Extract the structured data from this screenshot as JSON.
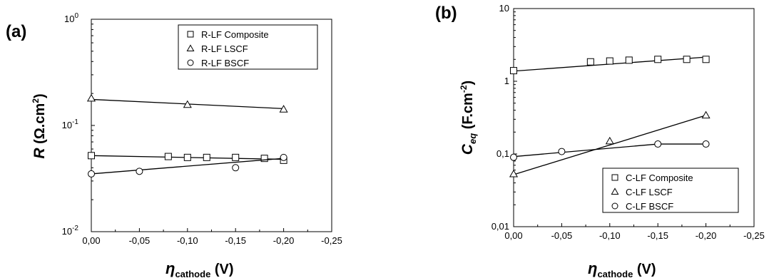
{
  "panels": [
    {
      "label": "(a)"
    },
    {
      "label": "(b)"
    }
  ],
  "chart_data": [
    {
      "type": "scatter",
      "yscale": "log",
      "xlim": [
        0,
        -0.25
      ],
      "ylim": [
        0.01,
        1
      ],
      "xticks": [
        "0,00",
        "-0,05",
        "-0,10",
        "-0,15",
        "-0,20",
        "-0,25"
      ],
      "ytick_base": "10",
      "ytick_exponents": [
        "-2",
        "-1",
        "0"
      ],
      "ylabel": {
        "main": "R",
        "units_pre": "(Ω.cm",
        "units_sup": "2",
        "units_post": ")"
      },
      "xlabel": {
        "symbol": "η",
        "sub": "cathode",
        "units": "(V)"
      },
      "legend_position": "top-right",
      "series": [
        {
          "name": "R-LF Composite",
          "marker": "square",
          "x": [
            0,
            -0.08,
            -0.1,
            -0.12,
            -0.15,
            -0.18,
            -0.2
          ],
          "y": [
            0.052,
            0.051,
            0.05,
            0.05,
            0.05,
            0.049,
            0.047
          ],
          "fit": [
            [
              0,
              0.052
            ],
            [
              -0.2,
              0.048
            ]
          ]
        },
        {
          "name": "R-LF LSCF",
          "marker": "triangle",
          "x": [
            0,
            -0.1,
            -0.2
          ],
          "y": [
            0.18,
            0.157,
            0.142
          ],
          "fit": [
            [
              0,
              0.176
            ],
            [
              -0.2,
              0.144
            ]
          ]
        },
        {
          "name": "R-LF BSCF",
          "marker": "circle",
          "x": [
            0,
            -0.05,
            -0.15,
            -0.2
          ],
          "y": [
            0.035,
            0.037,
            0.04,
            0.05
          ],
          "fit": [
            [
              0,
              0.035
            ],
            [
              -0.2,
              0.049
            ]
          ]
        }
      ]
    },
    {
      "type": "scatter",
      "yscale": "log",
      "xlim": [
        0,
        -0.25
      ],
      "ylim": [
        0.01,
        10
      ],
      "xticks": [
        "0,00",
        "-0,05",
        "-0,10",
        "-0,15",
        "-0,20",
        "-0,25"
      ],
      "ytick_labels": [
        "0,01",
        "0,1",
        "1",
        "10"
      ],
      "ylabel": {
        "main": "C",
        "sub": "eq",
        "units_pre": "(F.cm",
        "units_sup": "-2",
        "units_post": ")"
      },
      "xlabel": {
        "symbol": "η",
        "sub": "cathode",
        "units": "(V)"
      },
      "legend_position": "bottom-right",
      "series": [
        {
          "name": "C-LF Composite",
          "marker": "square",
          "x": [
            0,
            -0.08,
            -0.1,
            -0.12,
            -0.15,
            -0.18,
            -0.2
          ],
          "y": [
            1.4,
            1.85,
            1.9,
            1.95,
            2.0,
            2.0,
            2.0
          ],
          "fit": [
            [
              0,
              1.38
            ],
            [
              -0.2,
              2.15
            ]
          ]
        },
        {
          "name": "C-LF LSCF",
          "marker": "triangle",
          "x": [
            0,
            -0.1,
            -0.2
          ],
          "y": [
            0.053,
            0.15,
            0.34
          ],
          "fit": [
            [
              0,
              0.052
            ],
            [
              -0.2,
              0.34
            ]
          ]
        },
        {
          "name": "C-LF BSCF",
          "marker": "circle",
          "x": [
            0,
            -0.05,
            -0.15,
            -0.2
          ],
          "y": [
            0.09,
            0.108,
            0.137,
            0.137
          ],
          "fit": [
            [
              0,
              0.092
            ],
            [
              -0.15,
              0.137
            ],
            [
              -0.2,
              0.137
            ]
          ]
        }
      ]
    }
  ]
}
